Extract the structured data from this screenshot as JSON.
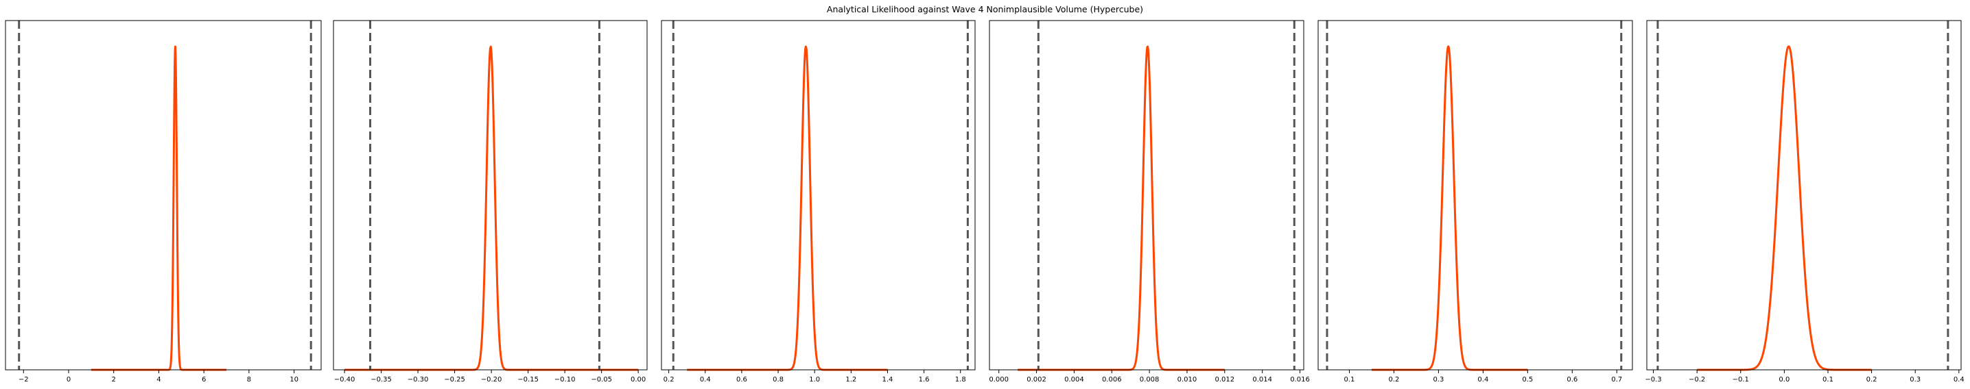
{
  "figure_title": "Analytical Likelihood against Wave 4 Nonimplausible Volume (Hypercube)",
  "colors": {
    "density_line": "#ff4500",
    "bound_line": "#555555",
    "frame": "#000000"
  },
  "chart_data": [
    {
      "type": "line",
      "title": "",
      "xlim": [
        -2.8,
        11.2
      ],
      "ylim": [
        0,
        1.08
      ],
      "xticks": [
        -2,
        0,
        2,
        4,
        6,
        8,
        10
      ],
      "xtick_labels": [
        "−2",
        "0",
        "2",
        "4",
        "6",
        "8",
        "10"
      ],
      "yticks_visible": false,
      "vlines": [
        -2.2,
        10.75
      ],
      "vline_style": "dashed",
      "density": {
        "range": [
          1.0,
          7.0
        ],
        "mean": 4.73,
        "sd": 0.07
      }
    },
    {
      "type": "line",
      "title": "",
      "xlim": [
        -0.415,
        0.012
      ],
      "ylim": [
        0,
        1.08
      ],
      "xticks": [
        -0.4,
        -0.35,
        -0.3,
        -0.25,
        -0.2,
        -0.15,
        -0.1,
        -0.05,
        0.0
      ],
      "xtick_labels": [
        "−0.40",
        "−0.35",
        "−0.30",
        "−0.25",
        "−0.20",
        "−0.15",
        "−0.10",
        "−0.05",
        "0.00"
      ],
      "yticks_visible": false,
      "vlines": [
        -0.365,
        -0.053
      ],
      "vline_style": "dashed",
      "density": {
        "range": [
          -0.4,
          0.0
        ],
        "mean": -0.201,
        "sd": 0.0055
      }
    },
    {
      "type": "line",
      "title": "",
      "xlim": [
        0.16,
        1.88
      ],
      "ylim": [
        0,
        1.08
      ],
      "xticks": [
        0.2,
        0.4,
        0.6,
        0.8,
        1.0,
        1.2,
        1.4,
        1.6,
        1.8
      ],
      "xtick_labels": [
        "0.2",
        "0.4",
        "0.6",
        "0.8",
        "1.0",
        "1.2",
        "1.4",
        "1.6",
        "1.8"
      ],
      "yticks_visible": false,
      "vlines": [
        0.225,
        1.84
      ],
      "vline_style": "dashed",
      "density": {
        "range": [
          0.3,
          1.4
        ],
        "mean": 0.952,
        "sd": 0.023
      }
    },
    {
      "type": "line",
      "title": "",
      "xlim": [
        -0.0005,
        0.0162
      ],
      "ylim": [
        0,
        1.08
      ],
      "xticks": [
        0.0,
        0.002,
        0.004,
        0.006,
        0.008,
        0.01,
        0.012,
        0.014,
        0.016
      ],
      "xtick_labels": [
        "0.000",
        "0.002",
        "0.004",
        "0.006",
        "0.008",
        "0.010",
        "0.012",
        "0.014",
        "0.016"
      ],
      "yticks_visible": false,
      "vlines": [
        0.0021,
        0.0157
      ],
      "vline_style": "dashed",
      "density": {
        "range": [
          0.001,
          0.012
        ],
        "mean": 0.0079,
        "sd": 0.00023
      }
    },
    {
      "type": "line",
      "title": "",
      "xlim": [
        0.03,
        0.735
      ],
      "ylim": [
        0,
        1.08
      ],
      "xticks": [
        0.1,
        0.2,
        0.3,
        0.4,
        0.5,
        0.6,
        0.7
      ],
      "xtick_labels": [
        "0.1",
        "0.2",
        "0.3",
        "0.4",
        "0.5",
        "0.6",
        "0.7"
      ],
      "yticks_visible": false,
      "vlines": [
        0.05,
        0.71
      ],
      "vline_style": "dashed",
      "density": {
        "range": [
          0.15,
          0.5
        ],
        "mean": 0.322,
        "sd": 0.0125
      }
    },
    {
      "type": "line",
      "title": "",
      "xlim": [
        -0.315,
        0.405
      ],
      "ylim": [
        0,
        1.08
      ],
      "xticks": [
        -0.3,
        -0.2,
        -0.1,
        0.0,
        0.1,
        0.2,
        0.3,
        0.4
      ],
      "xtick_labels": [
        "−0.3",
        "−0.2",
        "−0.1",
        "0.0",
        "0.1",
        "0.2",
        "0.3",
        "0.4"
      ],
      "yticks_visible": false,
      "vlines": [
        -0.29,
        0.375
      ],
      "vline_style": "dashed",
      "density": {
        "range": [
          -0.2,
          0.2
        ],
        "mean": 0.01,
        "sd": 0.024
      }
    }
  ]
}
